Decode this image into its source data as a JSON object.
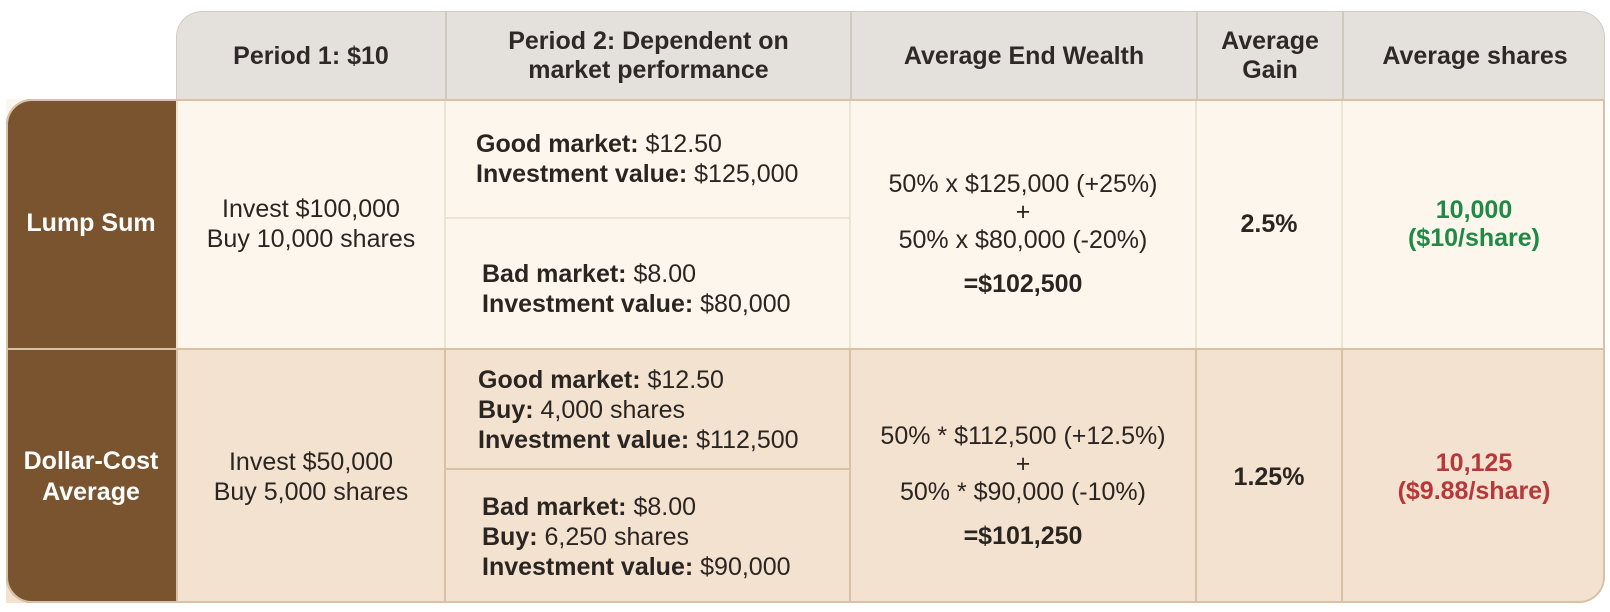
{
  "headers": {
    "period1": "Period 1: $10",
    "period2": "Period 2: Dependent on market performance",
    "end_wealth": "Average End Wealth",
    "gain": "Average Gain",
    "shares": "Average shares"
  },
  "rows": {
    "lump": {
      "label": "Lump Sum",
      "period1_line1": "Invest $100,000",
      "period1_line2": "Buy 10,000 shares",
      "good_label": "Good market:",
      "good_price": "$12.50",
      "good_value_label": "Investment value:",
      "good_value": "$125,000",
      "bad_label": "Bad market:",
      "bad_price": "$8.00",
      "bad_value_label": "Investment value:",
      "bad_value": "$80,000",
      "wealth_line1": "50% x $125,000 (+25%)",
      "wealth_plus": "+",
      "wealth_line2": "50% x $80,000 (-20%)",
      "wealth_total": "=$102,500",
      "gain": "2.5%",
      "shares_line1": "10,000",
      "shares_line2": "($10/share)"
    },
    "dca": {
      "label_line1": "Dollar-Cost",
      "label_line2": "Average",
      "period1_line1": "Invest $50,000",
      "period1_line2": "Buy 5,000 shares",
      "good_label": "Good market:",
      "good_price": "$12.50",
      "good_buy_label": "Buy:",
      "good_buy": "4,000 shares",
      "good_value_label": "Investment value:",
      "good_value": "$112,500",
      "bad_label": "Bad market:",
      "bad_price": "$8.00",
      "bad_buy_label": "Buy:",
      "bad_buy": "6,250 shares",
      "bad_value_label": "Investment value:",
      "bad_value": "$90,000",
      "wealth_line1": "50% * $112,500 (+12.5%)",
      "wealth_plus": "+",
      "wealth_line2": "50% * $90,000 (-10%)",
      "wealth_total": "=$101,250",
      "gain": "1.25%",
      "shares_line1": "10,125",
      "shares_line2": "($9.88/share)"
    }
  },
  "colors": {
    "label_bg": "#7a532f",
    "header_bg": "#e4e1dc",
    "lump_bg": "#fdf6ec",
    "dca_bg": "#f2e2cf",
    "green": "#1f8a45",
    "red": "#b8373a"
  }
}
